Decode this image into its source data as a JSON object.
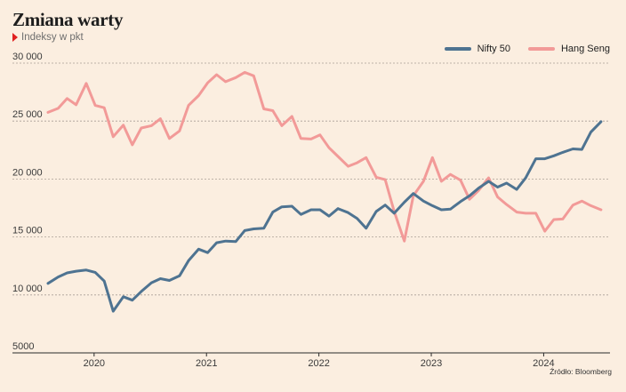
{
  "title": "Zmiana warty",
  "subtitle": "Indeksy w pkt",
  "source": "Źródło: Bloomberg",
  "chart_data": {
    "type": "line",
    "ylim": [
      5000,
      30000
    ],
    "xlim": [
      2019.59,
      2024.59
    ],
    "y_ticks": [
      {
        "value": 30000,
        "label": "30 000"
      },
      {
        "value": 25000,
        "label": "25 000"
      },
      {
        "value": 20000,
        "label": "20 000"
      },
      {
        "value": 15000,
        "label": "15 000"
      },
      {
        "value": 10000,
        "label": "10 000"
      },
      {
        "value": 5000,
        "label": "5000"
      }
    ],
    "x_ticks": [
      {
        "value": 2020.0,
        "label": "2020"
      },
      {
        "value": 2021.0,
        "label": "2021"
      },
      {
        "value": 2022.0,
        "label": "2022"
      },
      {
        "value": 2023.0,
        "label": "2023"
      },
      {
        "value": 2024.0,
        "label": "2024"
      }
    ],
    "grid": true,
    "legend_position": "top-right",
    "series": [
      {
        "name": "Nifty 50",
        "color": "#4e7391",
        "points": [
          [
            2019.59,
            11000
          ],
          [
            2019.68,
            11550
          ],
          [
            2019.76,
            11900
          ],
          [
            2019.84,
            12050
          ],
          [
            2019.93,
            12150
          ],
          [
            2020.01,
            11950
          ],
          [
            2020.09,
            11200
          ],
          [
            2020.17,
            8600
          ],
          [
            2020.26,
            9850
          ],
          [
            2020.34,
            9550
          ],
          [
            2020.42,
            10300
          ],
          [
            2020.51,
            11050
          ],
          [
            2020.59,
            11400
          ],
          [
            2020.67,
            11250
          ],
          [
            2020.76,
            11650
          ],
          [
            2020.84,
            12950
          ],
          [
            2020.93,
            13950
          ],
          [
            2021.01,
            13650
          ],
          [
            2021.09,
            14500
          ],
          [
            2021.17,
            14650
          ],
          [
            2021.26,
            14600
          ],
          [
            2021.34,
            15550
          ],
          [
            2021.42,
            15700
          ],
          [
            2021.51,
            15750
          ],
          [
            2021.59,
            17150
          ],
          [
            2021.67,
            17600
          ],
          [
            2021.76,
            17650
          ],
          [
            2021.84,
            16950
          ],
          [
            2021.93,
            17350
          ],
          [
            2022.01,
            17350
          ],
          [
            2022.09,
            16800
          ],
          [
            2022.17,
            17450
          ],
          [
            2022.26,
            17100
          ],
          [
            2022.34,
            16600
          ],
          [
            2022.42,
            15750
          ],
          [
            2022.51,
            17200
          ],
          [
            2022.59,
            17750
          ],
          [
            2022.67,
            17050
          ],
          [
            2022.76,
            18000
          ],
          [
            2022.84,
            18750
          ],
          [
            2022.93,
            18100
          ],
          [
            2023.01,
            17700
          ],
          [
            2023.09,
            17350
          ],
          [
            2023.17,
            17400
          ],
          [
            2023.26,
            18050
          ],
          [
            2023.34,
            18550
          ],
          [
            2023.42,
            19200
          ],
          [
            2023.51,
            19800
          ],
          [
            2023.59,
            19300
          ],
          [
            2023.67,
            19650
          ],
          [
            2023.76,
            19100
          ],
          [
            2023.84,
            20100
          ],
          [
            2023.93,
            21750
          ],
          [
            2024.01,
            21750
          ],
          [
            2024.09,
            22000
          ],
          [
            2024.17,
            22300
          ],
          [
            2024.26,
            22600
          ],
          [
            2024.34,
            22550
          ],
          [
            2024.42,
            24050
          ],
          [
            2024.51,
            24950
          ]
        ]
      },
      {
        "name": "Hang Seng",
        "color": "#f29a98",
        "points": [
          [
            2019.59,
            25750
          ],
          [
            2019.68,
            26100
          ],
          [
            2019.76,
            26950
          ],
          [
            2019.84,
            26400
          ],
          [
            2019.93,
            28250
          ],
          [
            2020.01,
            26350
          ],
          [
            2020.09,
            26150
          ],
          [
            2020.17,
            23650
          ],
          [
            2020.26,
            24650
          ],
          [
            2020.34,
            22950
          ],
          [
            2020.42,
            24400
          ],
          [
            2020.51,
            24600
          ],
          [
            2020.59,
            25200
          ],
          [
            2020.67,
            23500
          ],
          [
            2020.76,
            24150
          ],
          [
            2020.84,
            26350
          ],
          [
            2020.93,
            27200
          ],
          [
            2021.01,
            28300
          ],
          [
            2021.09,
            29000
          ],
          [
            2021.17,
            28400
          ],
          [
            2021.26,
            28750
          ],
          [
            2021.34,
            29200
          ],
          [
            2021.42,
            28900
          ],
          [
            2021.51,
            26050
          ],
          [
            2021.59,
            25900
          ],
          [
            2021.67,
            24600
          ],
          [
            2021.76,
            25400
          ],
          [
            2021.84,
            23500
          ],
          [
            2021.93,
            23450
          ],
          [
            2022.01,
            23800
          ],
          [
            2022.09,
            22700
          ],
          [
            2022.17,
            21950
          ],
          [
            2022.26,
            21100
          ],
          [
            2022.34,
            21400
          ],
          [
            2022.42,
            21850
          ],
          [
            2022.51,
            20150
          ],
          [
            2022.59,
            19950
          ],
          [
            2022.67,
            17200
          ],
          [
            2022.76,
            14650
          ],
          [
            2022.84,
            18550
          ],
          [
            2022.93,
            19800
          ],
          [
            2023.01,
            21850
          ],
          [
            2023.09,
            19800
          ],
          [
            2023.17,
            20400
          ],
          [
            2023.26,
            19900
          ],
          [
            2023.34,
            18250
          ],
          [
            2023.42,
            19000
          ],
          [
            2023.51,
            20100
          ],
          [
            2023.59,
            18450
          ],
          [
            2023.67,
            17800
          ],
          [
            2023.76,
            17150
          ],
          [
            2023.84,
            17050
          ],
          [
            2023.93,
            17050
          ],
          [
            2024.01,
            15500
          ],
          [
            2024.09,
            16500
          ],
          [
            2024.17,
            16550
          ],
          [
            2024.26,
            17750
          ],
          [
            2024.34,
            18100
          ],
          [
            2024.42,
            17700
          ],
          [
            2024.51,
            17350
          ]
        ]
      }
    ]
  }
}
